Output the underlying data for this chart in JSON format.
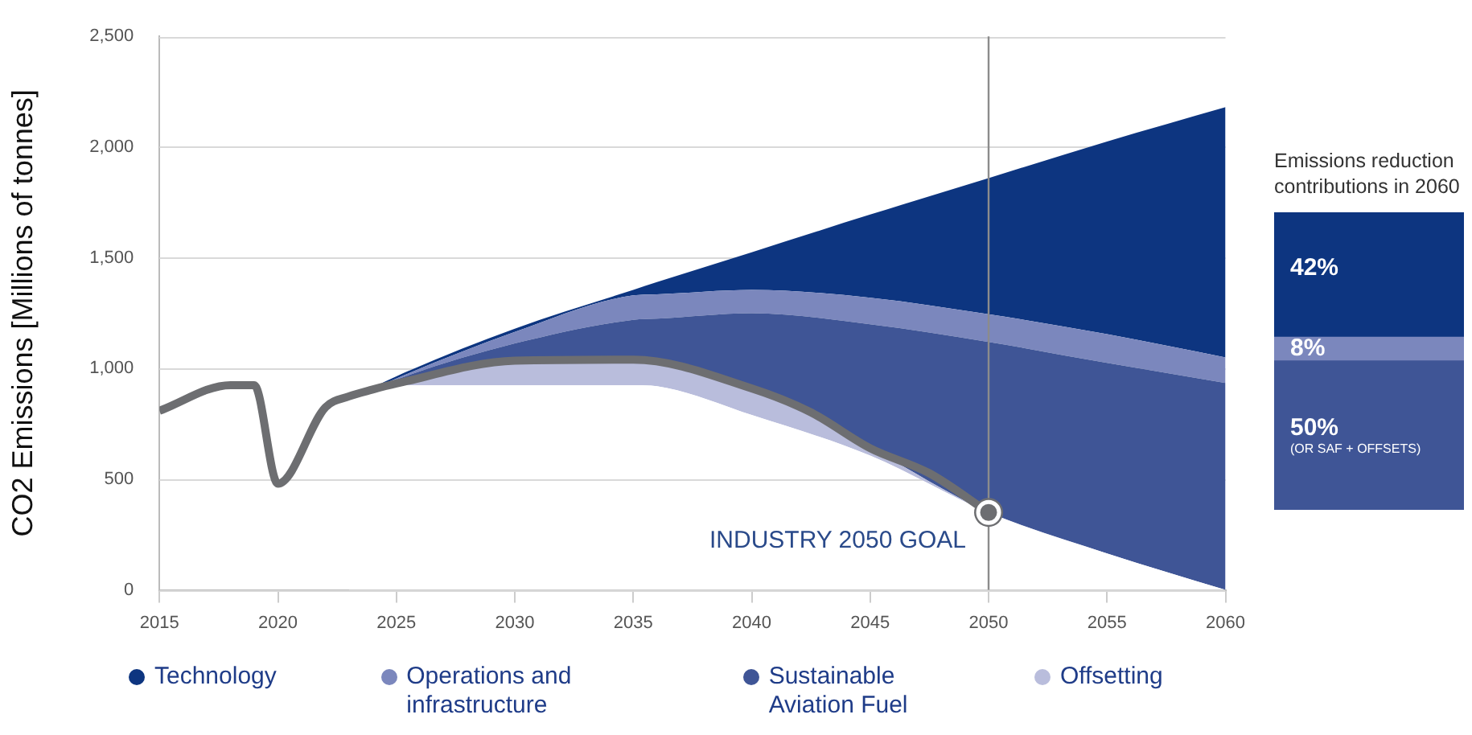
{
  "chart_data": [
    {
      "type": "area",
      "ylabel": "CO2 Emissions [Millions of tonnes]",
      "stacked": true,
      "grid": "y",
      "legend": "bottom",
      "xlim": [
        2015,
        2060
      ],
      "xticks": [
        2015,
        2020,
        2025,
        2030,
        2035,
        2040,
        2045,
        2050,
        2055,
        2060
      ],
      "ylim": [
        0,
        2500
      ],
      "yticks": [
        0,
        500,
        {
          "value": 1000,
          "label": "1,000"
        },
        {
          "value": 1500,
          "label": "1,500"
        },
        {
          "value": 2000,
          "label": "2,000"
        },
        {
          "value": 2500,
          "label": "2,500"
        }
      ],
      "ref_lines": [
        {
          "axis": "x",
          "value": 2050,
          "color": "#8c8c8c"
        }
      ],
      "annotations": [
        {
          "text": "INDUSTRY 2050 GOAL",
          "x": 2050,
          "y": 350
        }
      ],
      "series": [
        {
          "color": "#ffffff",
          "x": [
            2023,
            2025,
            2030,
            2035,
            2036,
            2040,
            2045,
            2050,
            2055,
            2060
          ],
          "values": [
            860,
            925,
            925,
            925,
            920,
            790,
            607,
            350,
            165,
            0
          ]
        },
        {
          "name": "Offsetting",
          "color": "#b9bddc",
          "x": [
            2023,
            2025,
            2030,
            2035,
            2036,
            2040,
            2045,
            2050,
            2055,
            2060
          ],
          "values": [
            0,
            7,
            110,
            115,
            110,
            120,
            33,
            0,
            0,
            0
          ]
        },
        {
          "name": "Sustainable Aviation Fuel",
          "color": "#3f5596",
          "x": [
            2023,
            2025,
            2030,
            2035,
            2036,
            2040,
            2045,
            2050,
            2055,
            2060
          ],
          "values": [
            0,
            18,
            78,
            180,
            195,
            340,
            560,
            770,
            860,
            935
          ]
        },
        {
          "name": "Operations and infrastructure",
          "color": "#7b87bd",
          "x": [
            2023,
            2025,
            2030,
            2035,
            2036,
            2040,
            2045,
            2050,
            2055,
            2060
          ],
          "values": [
            0,
            5,
            52,
            110,
            110,
            105,
            120,
            125,
            130,
            115
          ]
        },
        {
          "name": "Technology",
          "color": "#0d3580",
          "x": [
            2023,
            2025,
            2030,
            2035,
            2036,
            2040,
            2045,
            2050,
            2055,
            2060
          ],
          "values": [
            0,
            10,
            15,
            25,
            55,
            170,
            375,
            615,
            870,
            1130
          ]
        },
        {
          "type": "line",
          "color": "#6d6e71",
          "x": [
            2015,
            2018,
            2019,
            2020,
            2022,
            2023,
            2024,
            2025,
            2030,
            2035,
            2040,
            2042.5,
            2045,
            2047.5,
            2050
          ],
          "values": [
            809,
            925,
            925,
            480,
            824,
            874,
            905,
            932,
            1035,
            1040,
            910,
            802,
            640,
            527,
            350
          ]
        }
      ]
    },
    {
      "type": "bar",
      "title": "Emissions reduction contributions in 2060",
      "categories": [
        null
      ],
      "stacked": true,
      "tick_labels": false,
      "annotations": [
        "(OR SAF + OFFSETS)"
      ],
      "series": [
        {
          "color": "#3f5596",
          "values": [
            50
          ],
          "value_labels": [
            "50%"
          ]
        },
        {
          "color": "#7b87bd",
          "values": [
            8
          ],
          "value_labels": [
            "8%"
          ]
        },
        {
          "color": "#0d3580",
          "values": [
            42
          ],
          "value_labels": [
            "42%"
          ]
        }
      ]
    }
  ]
}
